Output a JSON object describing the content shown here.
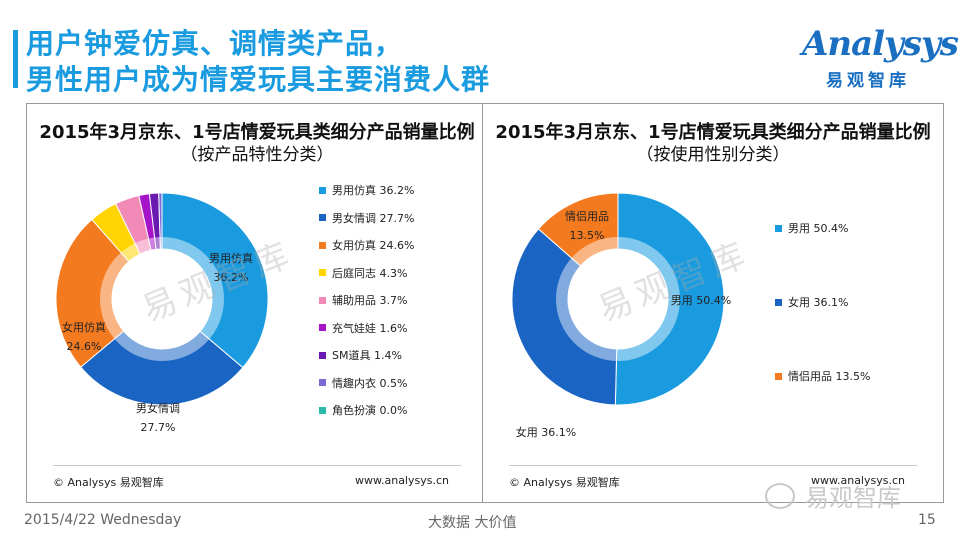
{
  "page": {
    "title_line1": "用户钟爱仿真、调情类产品，",
    "title_line2": "男性用户成为情爱玩具主要消费人群",
    "logo_word": "Analysys",
    "logo_cn": "易观智库",
    "footer_date": "2015/4/22 Wednesday",
    "footer_center": "大数据   大价值",
    "page_number": "15",
    "wechat_text": "易观智库",
    "watermark": "易观智库",
    "colors": {
      "accent": "#1a9be0"
    }
  },
  "panels": [
    {
      "title": "2015年3月京东、1号店情爱玩具类细分产品销量比例",
      "subtitle": "（按产品特性分类）",
      "credit": "© Analysys 易观智库",
      "site": "www.analysys.cn"
    },
    {
      "title": "2015年3月京东、1号店情爱玩具类细分产品销量比例",
      "subtitle": "（按使用性别分类）",
      "credit": "© Analysys 易观智库",
      "site": "www.analysys.cn"
    }
  ],
  "chart_data": [
    {
      "type": "pie",
      "title": "2015年3月京东、1号店情爱玩具类细分产品销量比例",
      "subtitle": "（按产品特性分类）",
      "donut": true,
      "legend_position": "right",
      "slices": [
        {
          "label": "男用仿真",
          "value": 36.2,
          "display": "36.2%",
          "color": "#1a9be0"
        },
        {
          "label": "男女情调",
          "value": 27.7,
          "display": "27.7%",
          "color": "#1a64c4"
        },
        {
          "label": "女用仿真",
          "value": 24.6,
          "display": "24.6%",
          "color": "#f47a20"
        },
        {
          "label": "后庭同志",
          "value": 4.3,
          "display": "4.3%",
          "color": "#ffd400"
        },
        {
          "label": "辅助用品",
          "value": 3.7,
          "display": "3.7%",
          "color": "#f28ab8"
        },
        {
          "label": "充气娃娃",
          "value": 1.6,
          "display": "1.6%",
          "color": "#a514c8"
        },
        {
          "label": "SM道具",
          "value": 1.4,
          "display": "1.4%",
          "color": "#6a1ab0"
        },
        {
          "label": "情趣内衣",
          "value": 0.5,
          "display": "0.5%",
          "color": "#7a6ad8"
        },
        {
          "label": "角色扮演",
          "value": 0.0,
          "display": "0.0%",
          "color": "#2ab8a8"
        }
      ],
      "slice_labels": [
        {
          "label": "男用仿真",
          "display": "36.2%"
        },
        {
          "label": "男女情调",
          "display": "27.7%"
        },
        {
          "label": "女用仿真",
          "display": "24.6%"
        }
      ]
    },
    {
      "type": "pie",
      "title": "2015年3月京东、1号店情爱玩具类细分产品销量比例",
      "subtitle": "（按使用性别分类）",
      "donut": true,
      "legend_position": "right",
      "slices": [
        {
          "label": "男用",
          "value": 50.4,
          "display": "50.4%",
          "color": "#1a9be0"
        },
        {
          "label": "女用",
          "value": 36.1,
          "display": "36.1%",
          "color": "#1a64c4"
        },
        {
          "label": "情侣用品",
          "value": 13.5,
          "display": "13.5%",
          "color": "#f47a20"
        }
      ],
      "slice_labels": [
        {
          "label": "男用",
          "display": "50.4%"
        },
        {
          "label": "女用",
          "display": "36.1%"
        },
        {
          "label": "情侣用品",
          "display": "13.5%"
        }
      ]
    }
  ]
}
